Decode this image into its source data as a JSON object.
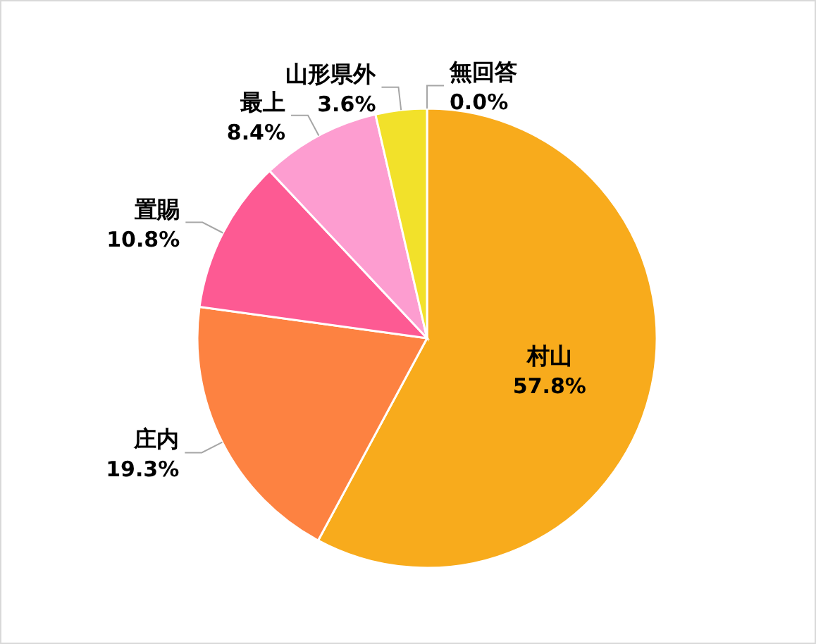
{
  "chart_data": {
    "type": "pie",
    "categories": [
      "村山",
      "庄内",
      "置賜",
      "最上",
      "山形県外",
      "無回答"
    ],
    "values": [
      57.8,
      19.3,
      10.8,
      8.4,
      3.6,
      0.0
    ],
    "value_labels": [
      "57.8%",
      "19.3%",
      "10.8%",
      "8.4%",
      "3.6%",
      "0.0%"
    ],
    "colors": [
      "#f8ab1c",
      "#fd8241",
      "#fd5a93",
      "#fd9dd0",
      "#f2e12a",
      "#a5a5a5"
    ],
    "legend": false
  }
}
